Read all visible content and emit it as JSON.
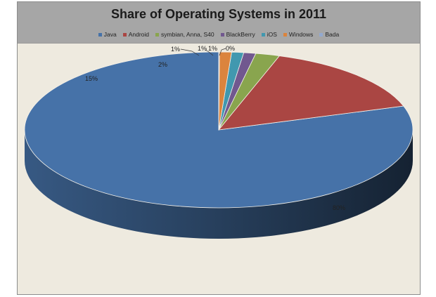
{
  "chart_data": {
    "type": "pie",
    "title": "Share of Operating Systems in 2011",
    "legend_position": "top",
    "categories": [
      "Java",
      "Android",
      "symbian, Anna, S40",
      "BlackBerry",
      "iOS",
      "Windows",
      "Bada"
    ],
    "values": [
      80,
      15,
      2,
      1,
      1,
      1,
      0
    ],
    "value_labels": [
      "80%",
      "15%",
      "2%",
      "1%",
      "1%",
      "1%",
      "0%"
    ],
    "colors": [
      "#4672a8",
      "#aa4643",
      "#89a54e",
      "#71588f",
      "#4198af",
      "#db843d",
      "#93a9cf"
    ],
    "style": "3d"
  }
}
